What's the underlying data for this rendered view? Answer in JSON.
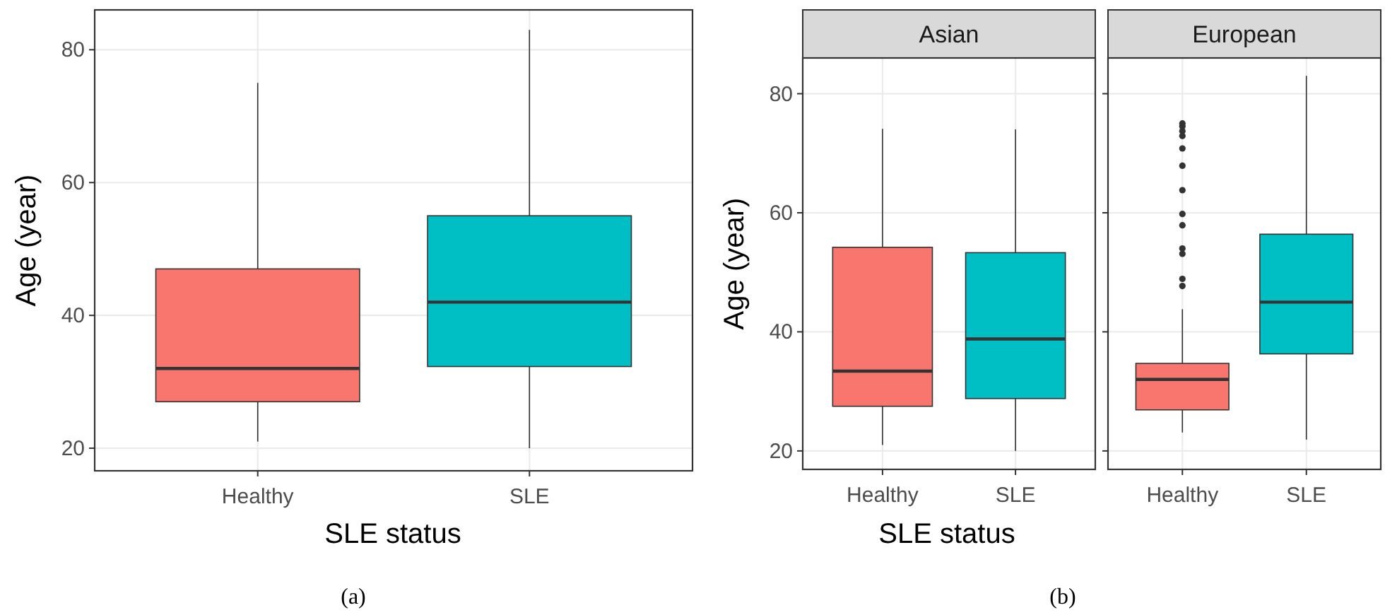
{
  "chart_data": [
    {
      "type": "box",
      "categories": [
        "Healthy",
        "SLE"
      ],
      "colors": [
        "#f8766d",
        "#00bfc4"
      ],
      "xlabel": "SLE status",
      "ylabel": "Age (year)",
      "ylim": [
        16.6,
        86
      ],
      "yticks": [
        20,
        40,
        60,
        80
      ],
      "grid": true,
      "annotations": [
        "(a)"
      ],
      "boxes": [
        {
          "low": 21,
          "q1": 27,
          "median": 32,
          "q3": 47,
          "high": 75
        },
        {
          "low": 20,
          "q1": 32.3,
          "median": 42,
          "q3": 55,
          "high": 83
        }
      ]
    },
    {
      "type": "box",
      "title": "Asian",
      "categories": [
        "Healthy",
        "SLE"
      ],
      "colors": [
        "#f8766d",
        "#00bfc4"
      ],
      "xlabel": "SLE status",
      "ylabel": "Age (year)",
      "ylim": [
        16.9,
        86
      ],
      "yticks": [
        20,
        40,
        60,
        80
      ],
      "grid": true,
      "annotations": [
        "(b)"
      ],
      "boxes": [
        {
          "low": 21,
          "q1": 27.5,
          "median": 33.4,
          "q3": 54.2,
          "high": 74.1
        },
        {
          "low": 20,
          "q1": 28.8,
          "median": 38.8,
          "q3": 53.3,
          "high": 74
        }
      ]
    },
    {
      "type": "box",
      "title": "European",
      "categories": [
        "Healthy",
        "SLE"
      ],
      "colors": [
        "#f8766d",
        "#00bfc4"
      ],
      "ylim": [
        16.9,
        86
      ],
      "yticks": [
        20,
        40,
        60,
        80
      ],
      "grid": true,
      "tick_labels": "x",
      "boxes": [
        {
          "low": 23.1,
          "q1": 26.9,
          "median": 32,
          "q3": 34.7,
          "high": 43.8,
          "outliers": [
            75,
            74.5,
            73.7,
            72.9,
            70.8,
            67.9,
            63.8,
            59.8,
            57.9,
            54,
            53.1,
            48.9,
            47.7
          ]
        },
        {
          "low": 21.9,
          "q1": 36.3,
          "median": 45,
          "q3": 56.4,
          "high": 83
        }
      ]
    }
  ]
}
